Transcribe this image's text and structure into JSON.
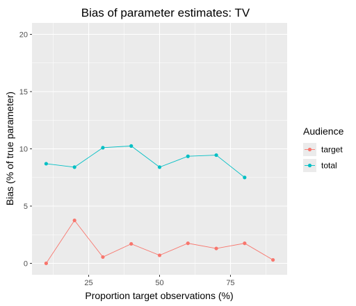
{
  "chart_data": {
    "type": "line",
    "title": "Bias of parameter estimates: TV",
    "xlabel": "Proportion target observations (%)",
    "ylabel": "Bias (% of true parameter)",
    "xlim": [
      5,
      95
    ],
    "ylim": [
      -1,
      21
    ],
    "x_ticks": [
      25,
      50,
      75
    ],
    "x_tick_labels": [
      "25",
      "50",
      "75"
    ],
    "y_ticks": [
      0,
      5,
      10,
      15,
      20
    ],
    "y_tick_labels": [
      "0",
      "5",
      "10",
      "15",
      "20"
    ],
    "grid": true,
    "legend": {
      "title": "Audience",
      "position": "right"
    },
    "series": [
      {
        "name": "target",
        "color": "#F8766D",
        "x": [
          10,
          20,
          30,
          40,
          50,
          60,
          70,
          80,
          90
        ],
        "y": [
          0.0,
          3.75,
          0.55,
          1.7,
          0.7,
          1.75,
          1.3,
          1.75,
          0.3
        ]
      },
      {
        "name": "total",
        "color": "#00BFC4",
        "x": [
          10,
          20,
          30,
          40,
          50,
          60,
          70,
          80
        ],
        "y": [
          8.7,
          8.4,
          10.1,
          10.25,
          8.4,
          9.35,
          9.45,
          7.5
        ]
      }
    ]
  }
}
